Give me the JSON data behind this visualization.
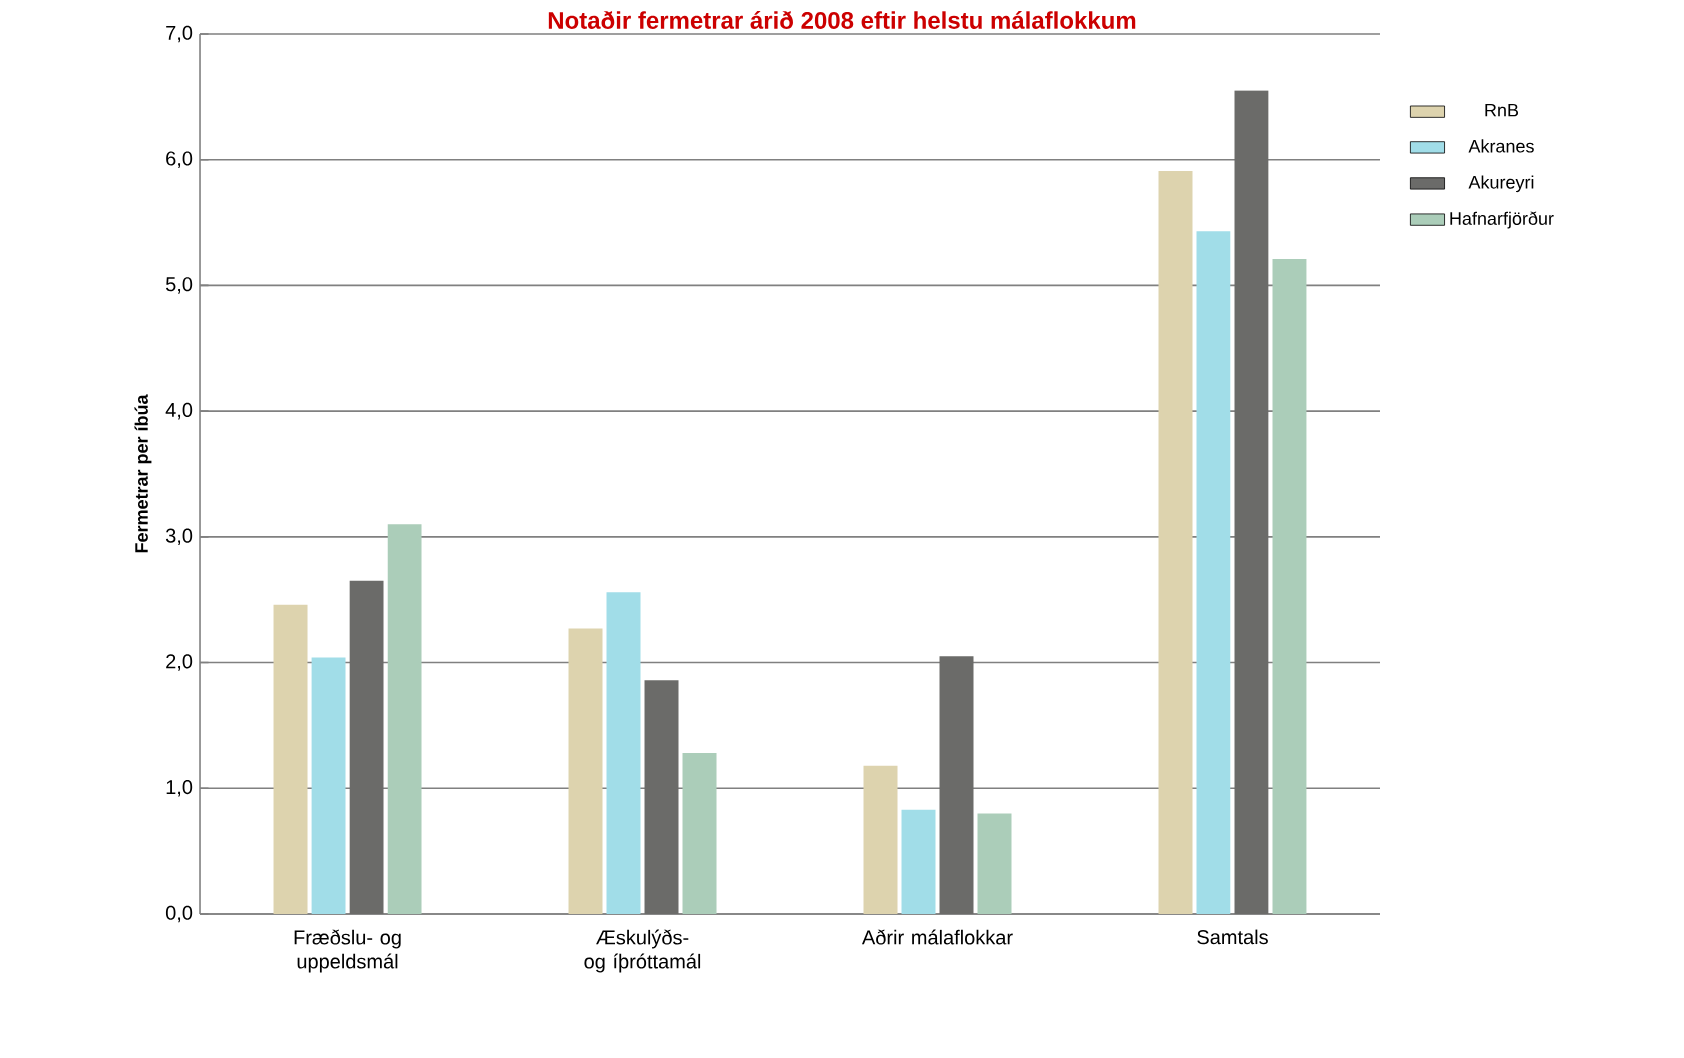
{
  "chart_data": {
    "type": "bar",
    "title": "Notaðir fermetrar árið 2008 eftir helstu málaflokkum",
    "ylabel": "Fermetrar per íbúa",
    "categories": [
      "Fræðslu- og uppeldsmál",
      "Æskulýðs- og íþróttamál",
      "Aðrir málaflokkar",
      "Samtals"
    ],
    "series": [
      {
        "name": "RnB",
        "color": "#ddd3ae",
        "values": [
          2.46,
          2.27,
          1.18,
          5.91
        ]
      },
      {
        "name": "Akranes",
        "color": "#a1dde8",
        "values": [
          2.04,
          2.56,
          0.83,
          5.43
        ]
      },
      {
        "name": "Akureyri",
        "color": "#6b6b69",
        "values": [
          2.65,
          1.86,
          2.05,
          6.55
        ]
      },
      {
        "name": "Hafnarfjörður",
        "color": "#abcdb9",
        "values": [
          3.1,
          1.28,
          0.8,
          5.21
        ]
      }
    ],
    "ylim": [
      0,
      7
    ],
    "yticks": [
      {
        "value": 0,
        "label": "0,0"
      },
      {
        "value": 1,
        "label": "1,0"
      },
      {
        "value": 2,
        "label": "2,0"
      },
      {
        "value": 3,
        "label": "3,0"
      },
      {
        "value": 4,
        "label": "4,0"
      },
      {
        "value": 5,
        "label": "5,0"
      },
      {
        "value": 6,
        "label": "6,0"
      },
      {
        "value": 7,
        "label": "7,0"
      }
    ],
    "grid": "y",
    "legend": "right"
  }
}
